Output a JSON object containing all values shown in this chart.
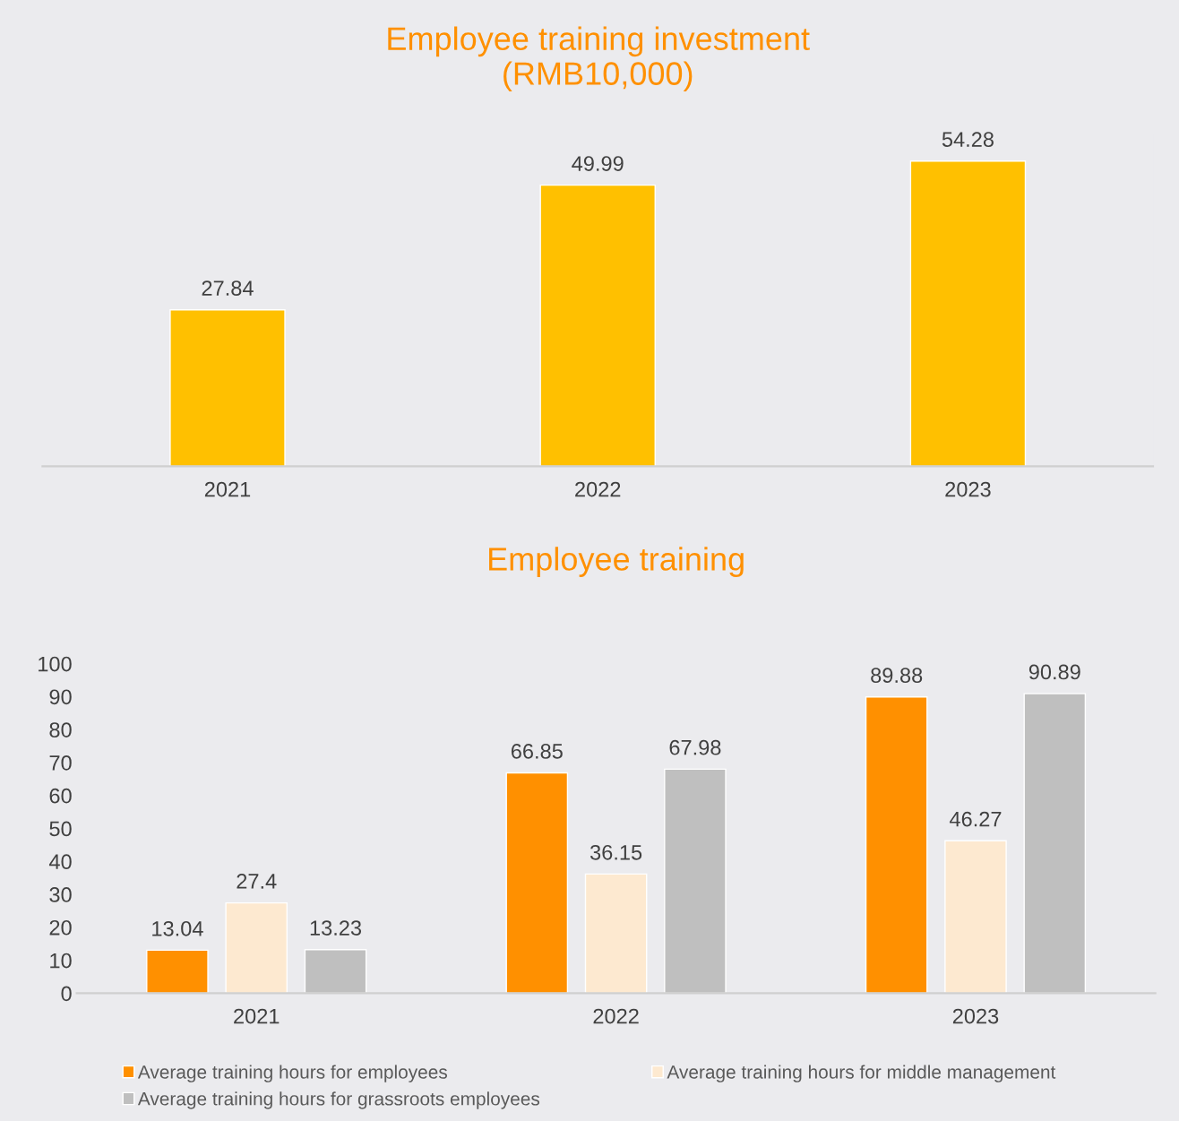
{
  "chart_data": [
    {
      "type": "bar",
      "title": "Employee training investment\n(RMB10,000)",
      "categories": [
        "2021",
        "2022",
        "2023"
      ],
      "values": [
        27.84,
        49.99,
        54.28
      ],
      "color": "#ffc000",
      "data_labels": true,
      "tick_labels": "x",
      "grid": false,
      "legend": false
    },
    {
      "type": "bar",
      "title": "Employee training",
      "categories": [
        "2021",
        "2022",
        "2023"
      ],
      "series": [
        {
          "name": "Average training hours for employees",
          "color": "#ff9000",
          "values": [
            13.04,
            66.85,
            89.88
          ]
        },
        {
          "name": "Average training hours for middle management",
          "color": "#fde9d0",
          "values": [
            27.4,
            36.15,
            46.27
          ]
        },
        {
          "name": "Average training hours for grassroots employees",
          "color": "#bfbfbf",
          "values": [
            13.23,
            67.98,
            90.89
          ]
        }
      ],
      "ylim": [
        0,
        100
      ],
      "yticks": [
        0,
        10,
        20,
        30,
        40,
        50,
        60,
        70,
        80,
        90,
        100
      ],
      "data_labels": true,
      "grid": false,
      "legend": "bottom"
    }
  ]
}
